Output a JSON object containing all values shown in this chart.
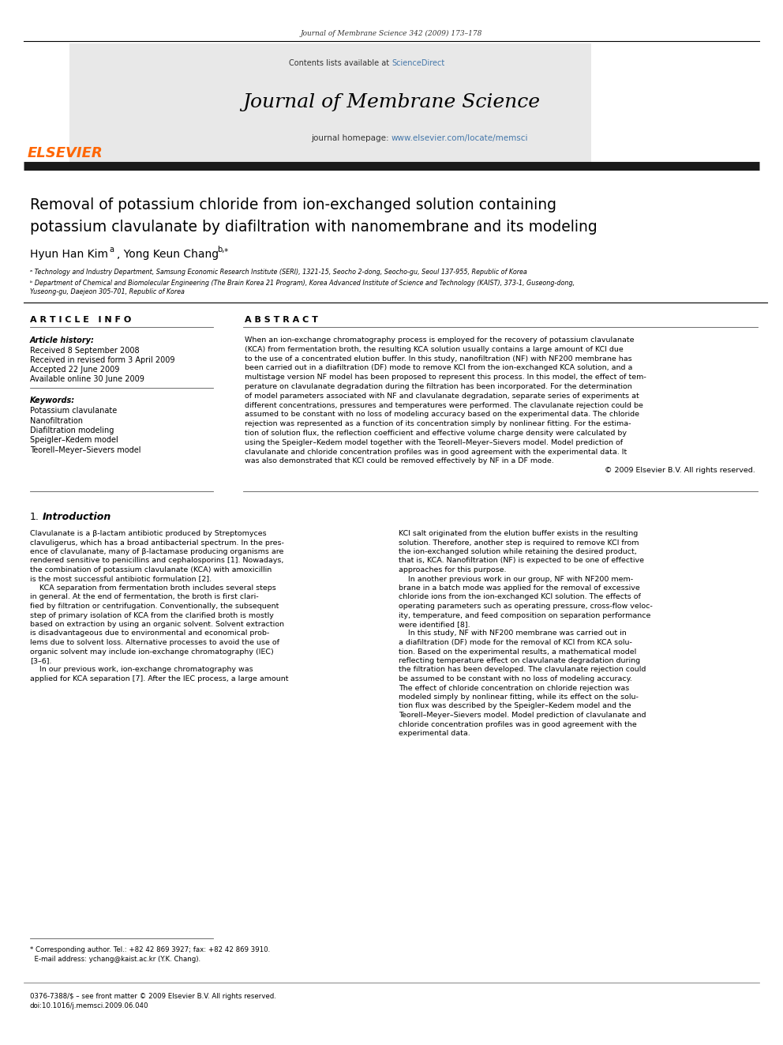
{
  "page_width": 9.92,
  "page_height": 13.23,
  "bg_color": "#ffffff",
  "top_journal_ref": "Journal of Membrane Science 342 (2009) 173–178",
  "header_bg": "#e8e8e8",
  "sciencedirect_color": "#4477aa",
  "journal_title": "Journal of Membrane Science",
  "homepage_color": "#4477aa",
  "elsevier_orange": "#FF6600",
  "elsevier_text": "ELSEVIER",
  "received": "Received 8 September 2008",
  "revised": "Received in revised form 3 April 2009",
  "accepted": "Accepted 22 June 2009",
  "available": "Available online 30 June 2009",
  "keywords": [
    "Potassium clavulanate",
    "Nanofiltration",
    "Diafiltration modeling",
    "Speigler–Kedem model",
    "Teorell–Meyer–Sievers model"
  ],
  "affil_a": "ᵃ Technology and Industry Department, Samsung Economic Research Institute (SERI), 1321-15, Seocho 2-dong, Seocho-gu, Seoul 137-955, Republic of Korea",
  "abstract_lines": [
    "When an ion-exchange chromatography process is employed for the recovery of potassium clavulanate",
    "(KCA) from fermentation broth, the resulting KCA solution usually contains a large amount of KCl due",
    "to the use of a concentrated elution buffer. In this study, nanofiltration (NF) with NF200 membrane has",
    "been carried out in a diafiltration (DF) mode to remove KCl from the ion-exchanged KCA solution, and a",
    "multistage version NF model has been proposed to represent this process. In this model, the effect of tem-",
    "perature on clavulanate degradation during the filtration has been incorporated. For the determination",
    "of model parameters associated with NF and clavulanate degradation, separate series of experiments at",
    "different concentrations, pressures and temperatures were performed. The clavulanate rejection could be",
    "assumed to be constant with no loss of modeling accuracy based on the experimental data. The chloride",
    "rejection was represented as a function of its concentration simply by nonlinear fitting. For the estima-",
    "tion of solution flux, the reflection coefficient and effective volume charge density were calculated by",
    "using the Speigler–Kedem model together with the Teorell–Meyer–Sievers model. Model prediction of",
    "clavulanate and chloride concentration profiles was in good agreement with the experimental data. It",
    "was also demonstrated that KCl could be removed effectively by NF in a DF mode.",
    "© 2009 Elsevier B.V. All rights reserved."
  ],
  "intro_left": [
    "Clavulanate is a β-lactam antibiotic produced by Streptomyces",
    "clavuligerus, which has a broad antibacterial spectrum. In the pres-",
    "ence of clavulanate, many of β-lactamase producing organisms are",
    "rendered sensitive to penicillins and cephalosporins [1]. Nowadays,",
    "the combination of potassium clavulanate (KCA) with amoxicillin",
    "is the most successful antibiotic formulation [2].",
    "    KCA separation from fermentation broth includes several steps",
    "in general. At the end of fermentation, the broth is first clari-",
    "fied by filtration or centrifugation. Conventionally, the subsequent",
    "step of primary isolation of KCA from the clarified broth is mostly",
    "based on extraction by using an organic solvent. Solvent extraction",
    "is disadvantageous due to environmental and economical prob-",
    "lems due to solvent loss. Alternative processes to avoid the use of",
    "organic solvent may include ion-exchange chromatography (IEC)",
    "[3–6].",
    "    In our previous work, ion-exchange chromatography was",
    "applied for KCA separation [7]. After the IEC process, a large amount"
  ],
  "intro_right": [
    "KCl salt originated from the elution buffer exists in the resulting",
    "solution. Therefore, another step is required to remove KCl from",
    "the ion-exchanged solution while retaining the desired product,",
    "that is, KCA. Nanofiltration (NF) is expected to be one of effective",
    "approaches for this purpose.",
    "    In another previous work in our group, NF with NF200 mem-",
    "brane in a batch mode was applied for the removal of excessive",
    "chloride ions from the ion-exchanged KCl solution. The effects of",
    "operating parameters such as operating pressure, cross-flow veloc-",
    "ity, temperature, and feed composition on separation performance",
    "were identified [8].",
    "    In this study, NF with NF200 membrane was carried out in",
    "a diafiltration (DF) mode for the removal of KCl from KCA solu-",
    "tion. Based on the experimental results, a mathematical model",
    "reflecting temperature effect on clavulanate degradation during",
    "the filtration has been developed. The clavulanate rejection could",
    "be assumed to be constant with no loss of modeling accuracy.",
    "The effect of chloride concentration on chloride rejection was",
    "modeled simply by nonlinear fitting, while its effect on the solu-",
    "tion flux was described by the Speigler–Kedem model and the",
    "Teorell–Meyer–Sievers model. Model prediction of clavulanate and",
    "chloride concentration profiles was in good agreement with the",
    "experimental data."
  ]
}
